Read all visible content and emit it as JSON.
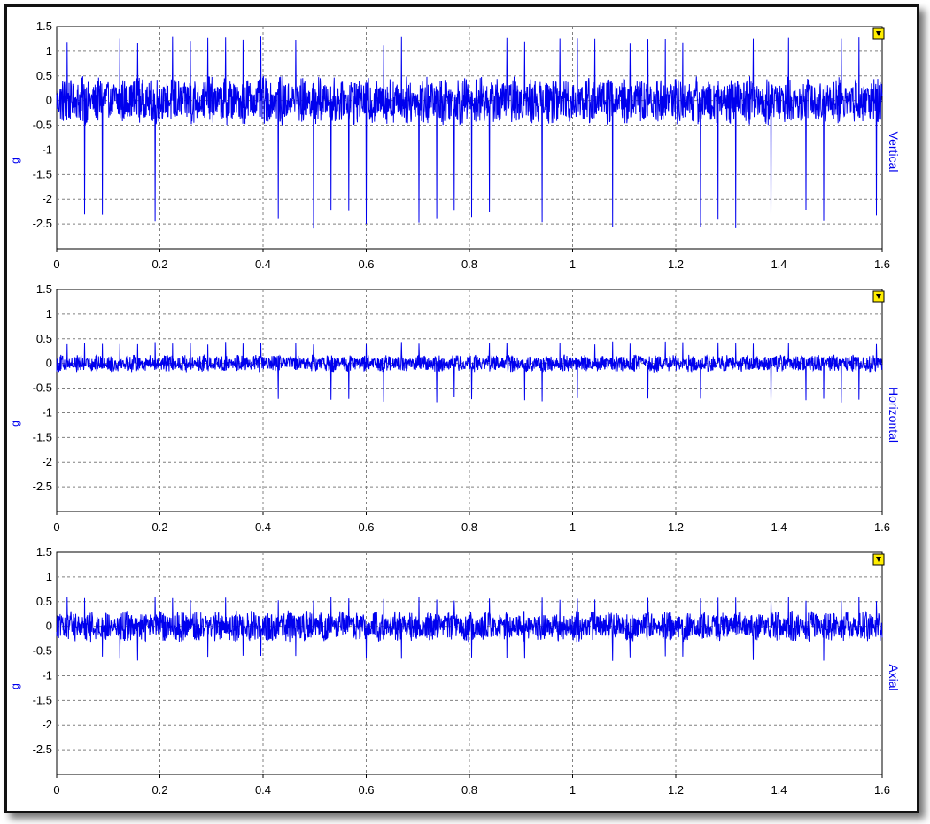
{
  "chart_data": [
    {
      "type": "line",
      "channel_label": "Vertical",
      "ylabel": "g",
      "xlim": [
        0,
        1.6
      ],
      "ylim": [
        -3.0,
        1.5
      ],
      "xticks": [
        "0",
        "0.2",
        "0.4",
        "0.6",
        "0.8",
        "1",
        "1.2",
        "1.4",
        "1.6"
      ],
      "yticks": [
        "1.5",
        "1",
        "0.5",
        "0",
        "-0.5",
        "-1",
        "-1.5",
        "-2",
        "-2.5"
      ],
      "grid": true,
      "line_color": "#0000ee",
      "marker_icon": "yellow-triangle-marker",
      "signal": {
        "noise_amplitude": 0.5,
        "impulse_period": 0.0341,
        "impulse_peak_positive": 1.3,
        "impulse_peak_negative": -2.6,
        "impulse_first": 0.02
      }
    },
    {
      "type": "line",
      "channel_label": "Horizontal",
      "ylabel": "g",
      "xlim": [
        0,
        1.6
      ],
      "ylim": [
        -3.0,
        1.5
      ],
      "xticks": [
        "0",
        "0.2",
        "0.4",
        "0.6",
        "0.8",
        "1",
        "1.2",
        "1.4",
        "1.6"
      ],
      "yticks": [
        "1.5",
        "1",
        "0.5",
        "0",
        "-0.5",
        "-1",
        "-1.5",
        "-2",
        "-2.5"
      ],
      "grid": true,
      "line_color": "#0000ee",
      "marker_icon": "yellow-triangle-marker",
      "signal": {
        "noise_amplitude": 0.18,
        "impulse_period": 0.0341,
        "impulse_peak_positive": 0.45,
        "impulse_peak_negative": -0.8,
        "impulse_first": 0.02
      }
    },
    {
      "type": "line",
      "channel_label": "Axial",
      "ylabel": "g",
      "xlim": [
        0,
        1.6
      ],
      "ylim": [
        -3.0,
        1.5
      ],
      "xticks": [
        "0",
        "0.2",
        "0.4",
        "0.6",
        "0.8",
        "1",
        "1.2",
        "1.4",
        "1.6"
      ],
      "yticks": [
        "1.5",
        "1",
        "0.5",
        "0",
        "-0.5",
        "-1",
        "-1.5",
        "-2",
        "-2.5"
      ],
      "grid": true,
      "line_color": "#0000ee",
      "marker_icon": "yellow-triangle-marker",
      "signal": {
        "noise_amplitude": 0.32,
        "impulse_period": 0.0341,
        "impulse_peak_positive": 0.6,
        "impulse_peak_negative": -0.7,
        "impulse_first": 0.02
      }
    }
  ]
}
